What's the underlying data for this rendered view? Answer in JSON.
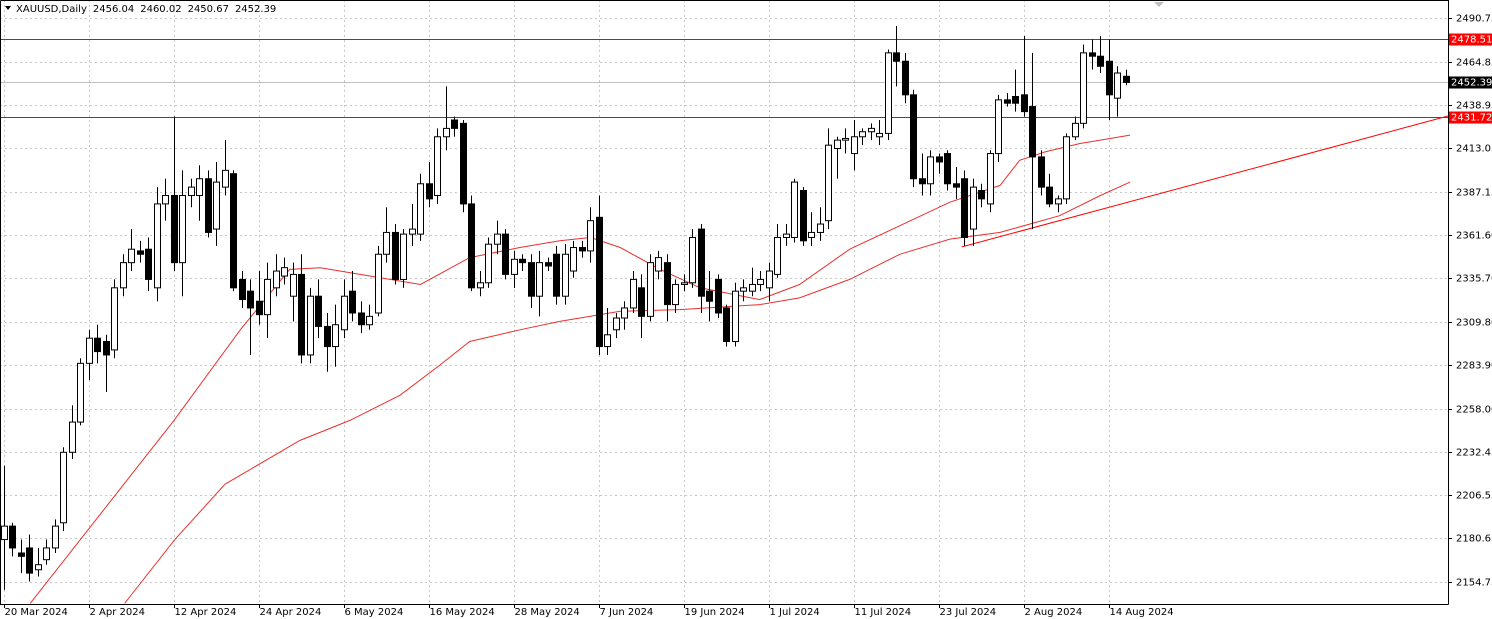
{
  "chart_data": {
    "type": "candlestick",
    "title": "XAUUSD,Daily",
    "ohlc": [
      [
        2180,
        2224,
        2150,
        2188
      ],
      [
        2188,
        2190,
        2170,
        2175
      ],
      [
        2172,
        2180,
        2160,
        2170
      ],
      [
        2175,
        2183,
        2155,
        2160
      ],
      [
        2162,
        2175,
        2158,
        2165
      ],
      [
        2168,
        2180,
        2165,
        2175
      ],
      [
        2175,
        2192,
        2172,
        2188
      ],
      [
        2190,
        2235,
        2185,
        2232
      ],
      [
        2232,
        2260,
        2228,
        2250
      ],
      [
        2250,
        2288,
        2248,
        2285
      ],
      [
        2285,
        2305,
        2275,
        2300
      ],
      [
        2300,
        2308,
        2285,
        2292
      ],
      [
        2298,
        2302,
        2268,
        2290
      ],
      [
        2293,
        2335,
        2288,
        2330
      ],
      [
        2330,
        2350,
        2325,
        2345
      ],
      [
        2345,
        2365,
        2340,
        2353
      ],
      [
        2352,
        2358,
        2345,
        2350
      ],
      [
        2353,
        2360,
        2328,
        2335
      ],
      [
        2330,
        2390,
        2322,
        2380
      ],
      [
        2380,
        2395,
        2370,
        2385
      ],
      [
        2385,
        2432,
        2340,
        2345
      ],
      [
        2345,
        2400,
        2325,
        2385
      ],
      [
        2385,
        2395,
        2378,
        2390
      ],
      [
        2385,
        2403,
        2370,
        2395
      ],
      [
        2395,
        2400,
        2360,
        2363
      ],
      [
        2365,
        2405,
        2355,
        2393
      ],
      [
        2390,
        2418,
        2385,
        2400
      ],
      [
        2398,
        2400,
        2328,
        2330
      ],
      [
        2335,
        2340,
        2318,
        2323
      ],
      [
        2328,
        2335,
        2290,
        2318
      ],
      [
        2322,
        2340,
        2308,
        2314
      ],
      [
        2314,
        2345,
        2300,
        2335
      ],
      [
        2330,
        2350,
        2325,
        2340
      ],
      [
        2337,
        2348,
        2332,
        2342
      ],
      [
        2325,
        2345,
        2310,
        2338
      ],
      [
        2338,
        2350,
        2285,
        2290
      ],
      [
        2290,
        2330,
        2285,
        2325
      ],
      [
        2325,
        2335,
        2300,
        2307
      ],
      [
        2307,
        2315,
        2280,
        2295
      ],
      [
        2295,
        2320,
        2283,
        2308
      ],
      [
        2305,
        2335,
        2300,
        2325
      ],
      [
        2328,
        2340,
        2310,
        2315
      ],
      [
        2315,
        2322,
        2303,
        2308
      ],
      [
        2308,
        2320,
        2305,
        2313
      ],
      [
        2315,
        2355,
        2313,
        2350
      ],
      [
        2350,
        2378,
        2345,
        2363
      ],
      [
        2363,
        2368,
        2332,
        2335
      ],
      [
        2335,
        2365,
        2330,
        2362
      ],
      [
        2362,
        2380,
        2355,
        2365
      ],
      [
        2362,
        2398,
        2358,
        2392
      ],
      [
        2392,
        2405,
        2378,
        2383
      ],
      [
        2385,
        2425,
        2380,
        2420
      ],
      [
        2420,
        2450,
        2412,
        2425
      ],
      [
        2430,
        2432,
        2420,
        2425
      ],
      [
        2428,
        2430,
        2375,
        2380
      ],
      [
        2380,
        2385,
        2328,
        2330
      ],
      [
        2330,
        2340,
        2325,
        2333
      ],
      [
        2333,
        2360,
        2330,
        2356
      ],
      [
        2356,
        2370,
        2350,
        2362
      ],
      [
        2362,
        2365,
        2335,
        2338
      ],
      [
        2338,
        2352,
        2330,
        2347
      ],
      [
        2347,
        2350,
        2340,
        2345
      ],
      [
        2345,
        2350,
        2318,
        2325
      ],
      [
        2325,
        2352,
        2313,
        2345
      ],
      [
        2345,
        2348,
        2340,
        2343
      ],
      [
        2350,
        2355,
        2320,
        2325
      ],
      [
        2325,
        2356,
        2320,
        2350
      ],
      [
        2340,
        2358,
        2336,
        2354
      ],
      [
        2354,
        2358,
        2348,
        2352
      ],
      [
        2352,
        2378,
        2345,
        2370
      ],
      [
        2372,
        2385,
        2290,
        2295
      ],
      [
        2295,
        2318,
        2290,
        2302
      ],
      [
        2305,
        2315,
        2300,
        2312
      ],
      [
        2312,
        2322,
        2305,
        2318
      ],
      [
        2318,
        2340,
        2315,
        2335
      ],
      [
        2330,
        2338,
        2300,
        2313
      ],
      [
        2313,
        2350,
        2310,
        2345
      ],
      [
        2340,
        2352,
        2335,
        2348
      ],
      [
        2345,
        2350,
        2310,
        2320
      ],
      [
        2320,
        2335,
        2315,
        2332
      ],
      [
        2332,
        2338,
        2328,
        2333
      ],
      [
        2333,
        2365,
        2330,
        2360
      ],
      [
        2365,
        2368,
        2315,
        2325
      ],
      [
        2328,
        2340,
        2310,
        2322
      ],
      [
        2335,
        2338,
        2312,
        2315
      ],
      [
        2318,
        2320,
        2295,
        2298
      ],
      [
        2298,
        2333,
        2295,
        2328
      ],
      [
        2328,
        2335,
        2322,
        2330
      ],
      [
        2328,
        2342,
        2325,
        2332
      ],
      [
        2332,
        2340,
        2328,
        2335
      ],
      [
        2330,
        2345,
        2322,
        2340
      ],
      [
        2338,
        2368,
        2336,
        2360
      ],
      [
        2360,
        2368,
        2355,
        2362
      ],
      [
        2360,
        2395,
        2357,
        2393
      ],
      [
        2388,
        2390,
        2355,
        2358
      ],
      [
        2360,
        2375,
        2355,
        2363
      ],
      [
        2363,
        2378,
        2358,
        2368
      ],
      [
        2370,
        2425,
        2365,
        2415
      ],
      [
        2413,
        2420,
        2395,
        2418
      ],
      [
        2418,
        2425,
        2410,
        2419
      ],
      [
        2410,
        2430,
        2400,
        2420
      ],
      [
        2420,
        2425,
        2415,
        2423
      ],
      [
        2423,
        2428,
        2418,
        2425
      ],
      [
        2420,
        2430,
        2415,
        2422
      ],
      [
        2422,
        2472,
        2418,
        2470
      ],
      [
        2470,
        2486,
        2450,
        2465
      ],
      [
        2465,
        2470,
        2440,
        2445
      ],
      [
        2445,
        2448,
        2390,
        2395
      ],
      [
        2395,
        2410,
        2385,
        2392
      ],
      [
        2392,
        2412,
        2385,
        2408
      ],
      [
        2408,
        2410,
        2398,
        2405
      ],
      [
        2410,
        2412,
        2388,
        2392
      ],
      [
        2392,
        2402,
        2383,
        2390
      ],
      [
        2395,
        2400,
        2355,
        2360
      ],
      [
        2365,
        2395,
        2355,
        2390
      ],
      [
        2388,
        2392,
        2378,
        2383
      ],
      [
        2380,
        2412,
        2375,
        2410
      ],
      [
        2410,
        2445,
        2405,
        2442
      ],
      [
        2442,
        2446,
        2438,
        2440
      ],
      [
        2444,
        2460,
        2435,
        2440
      ],
      [
        2445,
        2480,
        2432,
        2435
      ],
      [
        2438,
        2470,
        2365,
        2408
      ],
      [
        2408,
        2412,
        2385,
        2390
      ],
      [
        2390,
        2398,
        2378,
        2380
      ],
      [
        2380,
        2385,
        2375,
        2383
      ],
      [
        2383,
        2422,
        2380,
        2420
      ],
      [
        2420,
        2432,
        2418,
        2428
      ],
      [
        2428,
        2475,
        2425,
        2470
      ],
      [
        2470,
        2478,
        2460,
        2468
      ],
      [
        2468,
        2480,
        2458,
        2462
      ],
      [
        2465,
        2478,
        2430,
        2445
      ],
      [
        2443,
        2462,
        2432,
        2458
      ],
      [
        2456.04,
        2460.02,
        2450.67,
        2452.39
      ]
    ],
    "ma": [
      {
        "color": "#e8312f",
        "x": [
          3.1,
          20,
          27.8,
          33.6,
          37.2,
          41.9,
          49,
          54.8,
          60.7,
          65.4,
          69,
          72.5,
          77.2,
          81.9,
          88.9,
          93.6,
          99.5,
          105.4,
          111.3,
          117.2,
          119.5,
          122.5,
          126.6,
          129,
          132.5
        ],
        "values": [
          2142,
          2251,
          2305,
          2341,
          2342,
          2338,
          2332,
          2348,
          2354,
          2358,
          2360,
          2354,
          2341,
          2330,
          2323,
          2332,
          2353,
          2367,
          2381,
          2391,
          2406,
          2411,
          2416,
          2418,
          2421
        ]
      },
      {
        "color": "#e8312f",
        "x": [
          14.2,
          20.1,
          26,
          34.8,
          40.7,
          46.6,
          51.3,
          54.8,
          60.7,
          65.4,
          72.5,
          79.5,
          88.9,
          93.6,
          99.5,
          105.4,
          111.3,
          117.2,
          124.2,
          129,
          132.5
        ],
        "values": [
          2142,
          2180,
          2213,
          2239,
          2251,
          2266,
          2284,
          2298,
          2305,
          2310,
          2316,
          2317,
          2320,
          2324,
          2335,
          2350,
          2359,
          2363,
          2373,
          2385,
          2393
        ]
      }
    ],
    "hlines": [
      {
        "value": 2478.51,
        "color": "#ff0000"
      },
      {
        "value": 2431.72,
        "color": "#ff0000"
      }
    ],
    "trendline": {
      "color": "#ff0000",
      "x": [
        112.7,
        169.9
      ],
      "values": [
        2354.4,
        2432.4
      ]
    },
    "xlim": [
      -0.47,
      169.9
    ],
    "ylim": [
      2141.6,
      2501.5
    ],
    "yticks": [
      2490.75,
      2464.85,
      2438.95,
      2413.05,
      2387.15,
      {
        "value": 2361.6,
        "label": "2361.60"
      },
      {
        "value": 2335.7,
        "label": "2335.70"
      },
      {
        "value": 2309.8,
        "label": "2309.80"
      },
      {
        "value": 2283.9,
        "label": "2283.90"
      },
      {
        "value": 2258,
        "label": "2258.00"
      },
      2232.45,
      {
        "value": 2206.55,
        "label": "2206.55"
      },
      {
        "value": 2180.65,
        "label": "2180.65"
      },
      2154.75
    ],
    "xticks": [
      {
        "value": 0,
        "label": "20 Mar 2024"
      },
      {
        "value": 10,
        "label": "2 Apr 2024"
      },
      {
        "value": 20,
        "label": "12 Apr 2024"
      },
      {
        "value": 30,
        "label": "24 Apr 2024"
      },
      {
        "value": 40,
        "label": "6 May 2024"
      },
      {
        "value": 50,
        "label": "16 May 2024"
      },
      {
        "value": 60,
        "label": "28 May 2024"
      },
      {
        "value": 70,
        "label": "7 Jun 2024"
      },
      {
        "value": 80,
        "label": "19 Jun 2024"
      },
      {
        "value": 90,
        "label": "1 Jul 2024"
      },
      {
        "value": 100,
        "label": "11 Jul 2024"
      },
      {
        "value": 110,
        "label": "23 Jul 2024"
      },
      {
        "value": 120,
        "label": "2 Aug 2024"
      },
      {
        "value": 130,
        "label": "14 Aug 2024"
      }
    ],
    "grid": true
  }
}
